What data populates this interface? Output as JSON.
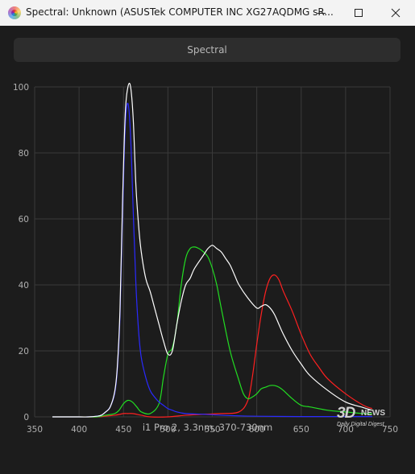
{
  "window": {
    "title": "Spectral: Unknown (ASUSTek COMPUTER INC XG27AQDMG sR...",
    "minimize_icon": "minimize-icon",
    "maximize_icon": "maximize-icon",
    "close_icon": "close-icon"
  },
  "header": {
    "spectral_label": "Spectral"
  },
  "footer": {
    "caption": "i1 Pro 2, 3.3nm, 370-730nm"
  },
  "watermark": {
    "main": "3D",
    "news": "NEWS",
    "sub": "Daily Digital Digest"
  },
  "colors": {
    "background": "#1c1c1c",
    "grid": "#3a3a3a",
    "white": "#ffffff",
    "red": "#ff2020",
    "green": "#22dd22",
    "blue": "#2a2aff"
  },
  "chart_data": {
    "type": "line",
    "title": "",
    "xlabel": "",
    "ylabel": "",
    "xlim": [
      350,
      750
    ],
    "ylim": [
      0,
      100
    ],
    "xticks": [
      350,
      400,
      450,
      500,
      550,
      600,
      650,
      700,
      750
    ],
    "yticks": [
      0,
      20,
      40,
      60,
      80,
      100
    ],
    "grid": true,
    "series": [
      {
        "color": "#ff2020",
        "x": [
          370,
          400,
          420,
          440,
          450,
          455,
          460,
          470,
          480,
          500,
          520,
          540,
          560,
          580,
          590,
          595,
          600,
          605,
          610,
          615,
          620,
          625,
          630,
          640,
          650,
          660,
          670,
          680,
          700,
          720,
          730
        ],
        "y": [
          0,
          0,
          0,
          0.5,
          1,
          1,
          1,
          0.5,
          0,
          0,
          0.5,
          0.8,
          1,
          1.5,
          5,
          12,
          22,
          31,
          38,
          42,
          43,
          41.5,
          38,
          32,
          25,
          19,
          15,
          11.5,
          7,
          3.5,
          2.5
        ]
      },
      {
        "color": "#22dd22",
        "x": [
          370,
          400,
          420,
          430,
          440,
          445,
          450,
          455,
          460,
          465,
          470,
          480,
          490,
          495,
          500,
          505,
          510,
          515,
          520,
          525,
          530,
          535,
          540,
          545,
          550,
          555,
          560,
          570,
          580,
          585,
          590,
          595,
          600,
          605,
          610,
          615,
          620,
          625,
          630,
          640,
          650,
          660,
          680,
          700,
          720,
          730
        ],
        "y": [
          0,
          0,
          0,
          0.5,
          1,
          2,
          4,
          5,
          4.5,
          3,
          1.5,
          1,
          4,
          12,
          19,
          21,
          28,
          40,
          48,
          51,
          51.5,
          51,
          50,
          48.5,
          45,
          40,
          33,
          20,
          11,
          7,
          5.5,
          6,
          7,
          8.5,
          9,
          9.5,
          9.5,
          9,
          8,
          5.5,
          3.5,
          3,
          2,
          1.5,
          1,
          1
        ]
      },
      {
        "color": "#2a2aff",
        "x": [
          370,
          400,
          410,
          420,
          425,
          430,
          435,
          440,
          443,
          446,
          449,
          452,
          455,
          458,
          461,
          464,
          467,
          470,
          475,
          480,
          485,
          490,
          495,
          500,
          505,
          510,
          520,
          540,
          560,
          580,
          600,
          650,
          700,
          730
        ],
        "y": [
          0,
          0,
          0,
          0.2,
          0.5,
          1.5,
          3,
          7,
          14,
          30,
          62,
          88,
          95,
          85,
          62,
          40,
          26,
          18,
          12,
          8,
          6,
          4.5,
          3.5,
          2.5,
          2,
          1.5,
          1,
          0.8,
          0.5,
          0.3,
          0.2,
          0.1,
          0.1,
          0.1
        ]
      },
      {
        "color": "#ffffff",
        "x": [
          370,
          400,
          410,
          420,
          425,
          430,
          435,
          440,
          443,
          446,
          449,
          452,
          455,
          458,
          461,
          464,
          467,
          470,
          475,
          480,
          485,
          490,
          495,
          500,
          505,
          510,
          515,
          520,
          525,
          530,
          540,
          545,
          550,
          555,
          560,
          565,
          570,
          575,
          580,
          590,
          600,
          605,
          610,
          615,
          620,
          625,
          630,
          640,
          650,
          660,
          680,
          700,
          720,
          730
        ],
        "y": [
          0,
          0,
          0,
          0.2,
          0.5,
          1.5,
          3,
          7.5,
          15,
          32,
          66,
          92,
          100,
          100,
          90,
          70,
          58,
          50,
          42,
          38,
          33,
          28,
          23,
          19,
          20,
          28,
          35,
          40,
          42,
          45,
          49,
          51,
          52,
          51,
          50,
          48,
          46,
          43,
          40,
          36,
          33,
          33.5,
          34,
          33,
          31,
          28,
          25,
          20,
          16,
          12.5,
          8,
          4.5,
          2.8,
          2
        ]
      }
    ]
  }
}
